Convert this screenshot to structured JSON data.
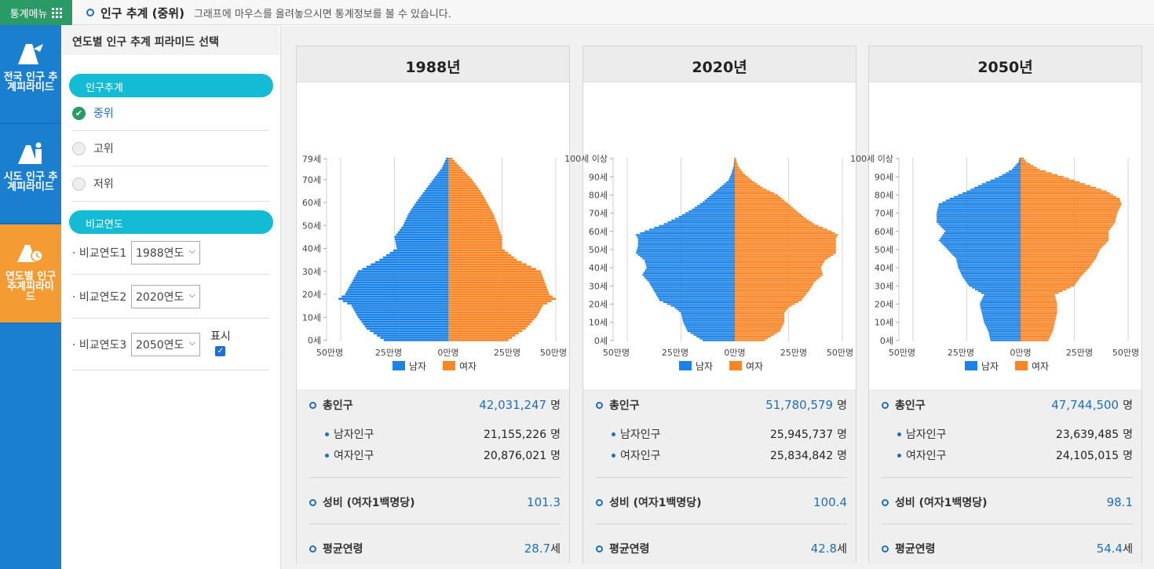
{
  "topbar": {
    "menu_label": "통계메뉴",
    "title": "인구 추계 (중위)",
    "hint": "그래프에 마우스를 올려놓으시면 통계정보를 볼 수 있습니다."
  },
  "nav": [
    {
      "label": "전국 인구 추계피라미드",
      "icon": "national-pyramid-icon"
    },
    {
      "label": "시도 인구 추계피라미드",
      "icon": "province-pyramid-icon"
    },
    {
      "label": "연도별 인구 추계피라미드",
      "icon": "yearly-pyramid-icon",
      "active": true
    }
  ],
  "panel": {
    "header": "연도별 인구 추계 피라미드 선택",
    "section1": "인구추계",
    "options": [
      "중위",
      "고위",
      "저위"
    ],
    "selected_option": "중위",
    "section2": "비교연도",
    "year_rows": [
      {
        "label": "· 비교연도1",
        "value": "1988연도"
      },
      {
        "label": "· 비교연도2",
        "value": "2020연도"
      },
      {
        "label": "· 비교연도3",
        "value": "2050연도"
      }
    ],
    "show_label": "표시",
    "show_checked": true
  },
  "colors": {
    "male": "#1b82e6",
    "female": "#f88526",
    "accent": "#1e6fb8",
    "nav_bg": "#1b7fd0",
    "nav_active": "#f49b33",
    "pill": "#13bcd4"
  },
  "legend": {
    "male": "남자",
    "female": "여자"
  },
  "axis": {
    "ticks": [
      "50만명",
      "25만명",
      "0만명",
      "25만명",
      "50만명"
    ]
  },
  "stat_labels": {
    "total": "총인구",
    "male": "남자인구",
    "female": "여자인구",
    "sex_ratio": "성비 (여자1백명당)",
    "mean_age": "평균연령",
    "person_unit": "명",
    "age_unit": "세"
  },
  "cards": [
    {
      "year": "1988년",
      "total": "42,031,247",
      "male": "21,155,226",
      "female": "20,876,021",
      "sex_ratio": "101.3",
      "mean_age": "28.7",
      "y_ticks": [
        "79세",
        "70세",
        "60세",
        "50세",
        "40세",
        "30세",
        "20세",
        "10세",
        "0세"
      ]
    },
    {
      "year": "2020년",
      "total": "51,780,579",
      "male": "25,945,737",
      "female": "25,834,842",
      "sex_ratio": "100.4",
      "mean_age": "42.8",
      "y_ticks": [
        "100세 이상",
        "90세",
        "80세",
        "70세",
        "60세",
        "50세",
        "40세",
        "30세",
        "20세",
        "10세",
        "0세"
      ]
    },
    {
      "year": "2050년",
      "total": "47,744,500",
      "male": "23,639,485",
      "female": "24,105,015",
      "sex_ratio": "98.1",
      "mean_age": "54.4",
      "y_ticks": [
        "100세 이상",
        "90세",
        "80세",
        "70세",
        "60세",
        "50세",
        "40세",
        "30세",
        "20세",
        "10세",
        "0세"
      ]
    }
  ],
  "chart_data": [
    {
      "type": "bar",
      "title": "1988년",
      "orientation": "horizontal",
      "xlim": [
        -500000,
        500000
      ],
      "age_top": 79,
      "male_anchors": [
        [
          0,
          300000
        ],
        [
          5,
          380000
        ],
        [
          10,
          420000
        ],
        [
          15,
          450000
        ],
        [
          18,
          510000
        ],
        [
          20,
          480000
        ],
        [
          25,
          450000
        ],
        [
          30,
          420000
        ],
        [
          35,
          320000
        ],
        [
          40,
          240000
        ],
        [
          45,
          250000
        ],
        [
          50,
          210000
        ],
        [
          55,
          185000
        ],
        [
          60,
          150000
        ],
        [
          65,
          110000
        ],
        [
          70,
          70000
        ],
        [
          75,
          30000
        ],
        [
          79,
          10000
        ]
      ],
      "female_anchors": [
        [
          0,
          280000
        ],
        [
          5,
          360000
        ],
        [
          10,
          410000
        ],
        [
          15,
          440000
        ],
        [
          18,
          500000
        ],
        [
          20,
          470000
        ],
        [
          25,
          450000
        ],
        [
          30,
          430000
        ],
        [
          35,
          320000
        ],
        [
          40,
          250000
        ],
        [
          45,
          250000
        ],
        [
          50,
          230000
        ],
        [
          55,
          210000
        ],
        [
          60,
          180000
        ],
        [
          65,
          150000
        ],
        [
          70,
          110000
        ],
        [
          75,
          60000
        ],
        [
          79,
          20000
        ]
      ]
    },
    {
      "type": "bar",
      "title": "2020년",
      "orientation": "horizontal",
      "xlim": [
        -500000,
        500000
      ],
      "age_top": 100,
      "male_anchors": [
        [
          0,
          150000
        ],
        [
          5,
          220000
        ],
        [
          10,
          240000
        ],
        [
          15,
          250000
        ],
        [
          18,
          280000
        ],
        [
          22,
          350000
        ],
        [
          28,
          380000
        ],
        [
          32,
          400000
        ],
        [
          36,
          430000
        ],
        [
          40,
          410000
        ],
        [
          44,
          420000
        ],
        [
          48,
          460000
        ],
        [
          52,
          450000
        ],
        [
          56,
          450000
        ],
        [
          58,
          460000
        ],
        [
          60,
          420000
        ],
        [
          64,
          330000
        ],
        [
          68,
          260000
        ],
        [
          72,
          200000
        ],
        [
          76,
          150000
        ],
        [
          80,
          110000
        ],
        [
          84,
          70000
        ],
        [
          88,
          30000
        ],
        [
          92,
          15000
        ],
        [
          96,
          5000
        ],
        [
          100,
          2000
        ]
      ],
      "female_anchors": [
        [
          0,
          140000
        ],
        [
          5,
          210000
        ],
        [
          10,
          230000
        ],
        [
          15,
          230000
        ],
        [
          18,
          250000
        ],
        [
          22,
          310000
        ],
        [
          28,
          350000
        ],
        [
          32,
          370000
        ],
        [
          36,
          410000
        ],
        [
          40,
          400000
        ],
        [
          44,
          420000
        ],
        [
          48,
          470000
        ],
        [
          52,
          470000
        ],
        [
          56,
          470000
        ],
        [
          58,
          480000
        ],
        [
          60,
          450000
        ],
        [
          64,
          370000
        ],
        [
          68,
          320000
        ],
        [
          72,
          280000
        ],
        [
          76,
          240000
        ],
        [
          80,
          200000
        ],
        [
          84,
          130000
        ],
        [
          88,
          80000
        ],
        [
          92,
          40000
        ],
        [
          96,
          15000
        ],
        [
          100,
          5000
        ]
      ]
    },
    {
      "type": "bar",
      "title": "2050년",
      "orientation": "horizontal",
      "xlim": [
        -500000,
        500000
      ],
      "age_top": 100,
      "male_anchors": [
        [
          0,
          140000
        ],
        [
          5,
          150000
        ],
        [
          10,
          170000
        ],
        [
          15,
          180000
        ],
        [
          20,
          190000
        ],
        [
          25,
          170000
        ],
        [
          30,
          240000
        ],
        [
          35,
          270000
        ],
        [
          40,
          290000
        ],
        [
          45,
          300000
        ],
        [
          50,
          340000
        ],
        [
          55,
          380000
        ],
        [
          60,
          350000
        ],
        [
          65,
          390000
        ],
        [
          70,
          390000
        ],
        [
          75,
          380000
        ],
        [
          78,
          330000
        ],
        [
          82,
          250000
        ],
        [
          86,
          180000
        ],
        [
          90,
          100000
        ],
        [
          94,
          40000
        ],
        [
          98,
          10000
        ],
        [
          100,
          5000
        ]
      ],
      "female_anchors": [
        [
          0,
          130000
        ],
        [
          5,
          150000
        ],
        [
          10,
          160000
        ],
        [
          15,
          170000
        ],
        [
          20,
          170000
        ],
        [
          25,
          160000
        ],
        [
          30,
          250000
        ],
        [
          35,
          280000
        ],
        [
          40,
          320000
        ],
        [
          45,
          350000
        ],
        [
          50,
          370000
        ],
        [
          55,
          410000
        ],
        [
          60,
          410000
        ],
        [
          65,
          440000
        ],
        [
          70,
          450000
        ],
        [
          75,
          470000
        ],
        [
          78,
          460000
        ],
        [
          82,
          400000
        ],
        [
          86,
          300000
        ],
        [
          90,
          200000
        ],
        [
          94,
          90000
        ],
        [
          98,
          30000
        ],
        [
          100,
          15000
        ]
      ]
    }
  ]
}
